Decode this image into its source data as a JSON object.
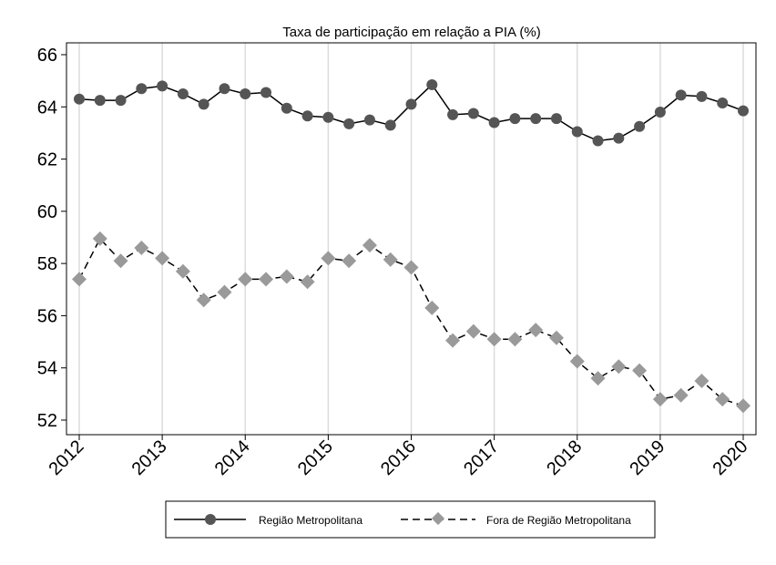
{
  "chart_data": {
    "type": "line",
    "title": "Taxa de participação em relação a PIA (%)",
    "xlabel": "",
    "ylabel": "",
    "xlim": [
      2012,
      2020
    ],
    "ylim": [
      51.5,
      66.5
    ],
    "y_ticks": [
      52,
      54,
      56,
      58,
      60,
      62,
      64,
      66
    ],
    "x_ticks": [
      "2012",
      "2013",
      "2014",
      "2015",
      "2016",
      "2017",
      "2018",
      "2019",
      "2020"
    ],
    "grid": "vertical",
    "legend_position": "bottom",
    "x": [
      2012.0,
      2012.25,
      2012.5,
      2012.75,
      2013.0,
      2013.25,
      2013.5,
      2013.75,
      2014.0,
      2014.25,
      2014.5,
      2014.75,
      2015.0,
      2015.25,
      2015.5,
      2015.75,
      2016.0,
      2016.25,
      2016.5,
      2016.75,
      2017.0,
      2017.25,
      2017.5,
      2017.75,
      2018.0,
      2018.25,
      2018.5,
      2018.75,
      2019.0,
      2019.25,
      2019.5,
      2019.75,
      2020.0
    ],
    "series": [
      {
        "name": "Região Metropolitana",
        "color": "#555555",
        "marker": "circle",
        "line_style": "solid",
        "values": [
          64.3,
          64.25,
          64.25,
          64.7,
          64.8,
          64.5,
          64.1,
          64.7,
          64.5,
          64.55,
          63.95,
          63.65,
          63.6,
          63.35,
          63.5,
          63.3,
          64.1,
          64.85,
          63.7,
          63.75,
          63.4,
          63.55,
          63.55,
          63.55,
          63.05,
          62.7,
          62.8,
          63.25,
          63.8,
          64.45,
          64.4,
          64.15,
          63.85
        ]
      },
      {
        "name": "Fora de Região Metropolitana",
        "color": "#9a9a9a",
        "marker": "diamond",
        "line_style": "dashed",
        "values": [
          57.4,
          58.95,
          58.1,
          58.6,
          58.2,
          57.7,
          56.6,
          56.9,
          57.4,
          57.4,
          57.5,
          57.3,
          58.2,
          58.1,
          58.7,
          58.15,
          57.85,
          56.3,
          55.05,
          55.4,
          55.1,
          55.1,
          55.45,
          55.15,
          54.25,
          53.6,
          54.05,
          53.9,
          52.8,
          52.95,
          53.5,
          52.8,
          52.55
        ]
      }
    ]
  }
}
